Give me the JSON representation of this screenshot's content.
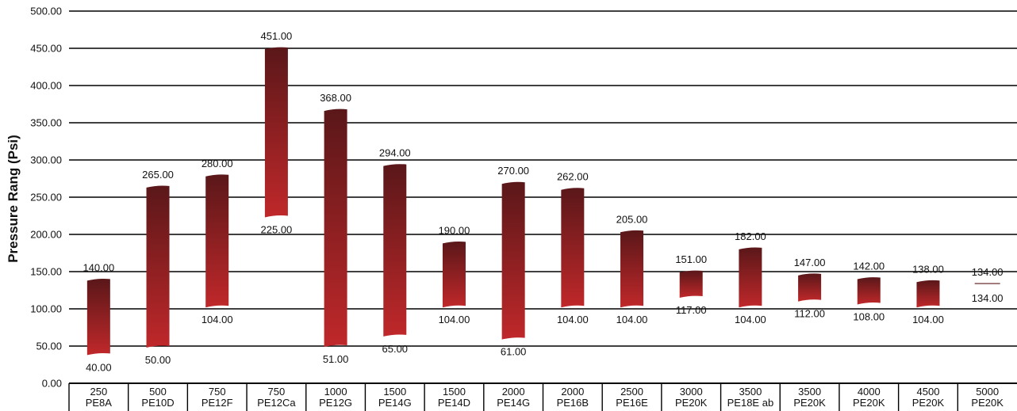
{
  "chart_data": {
    "type": "bar",
    "subtype": "floating-range",
    "ylabel": "Pressure Rang (Psi)",
    "ylim": [
      0,
      500
    ],
    "ytick_step": 50,
    "yticks": [
      "0.00",
      "50.00",
      "100.00",
      "150.00",
      "200.00",
      "250.00",
      "300.00",
      "350.00",
      "400.00",
      "450.00",
      "500.00"
    ],
    "grid": true,
    "legend": "none",
    "colors": {
      "bar_top": "#5a1719",
      "bar_bottom": "#c0282a",
      "grid": "#000000"
    },
    "categories": [
      {
        "line1": "250",
        "line2": "PE8A"
      },
      {
        "line1": "500",
        "line2": "PE10D"
      },
      {
        "line1": "750",
        "line2": "PE12F"
      },
      {
        "line1": "750",
        "line2": "PE12Ca"
      },
      {
        "line1": "1000",
        "line2": "PE12G"
      },
      {
        "line1": "1500",
        "line2": "PE14G"
      },
      {
        "line1": "1500",
        "line2": "PE14D"
      },
      {
        "line1": "2000",
        "line2": "PE14G"
      },
      {
        "line1": "2000",
        "line2": "PE16B"
      },
      {
        "line1": "2500",
        "line2": "PE16E"
      },
      {
        "line1": "3000",
        "line2": "PE20K"
      },
      {
        "line1": "3500",
        "line2": "PE18E ab"
      },
      {
        "line1": "3500",
        "line2": "PE20K"
      },
      {
        "line1": "4000",
        "line2": "PE20K"
      },
      {
        "line1": "4500",
        "line2": "PE20K"
      },
      {
        "line1": "5000",
        "line2": "PE20K"
      }
    ],
    "high": [
      140,
      265,
      280,
      451,
      368,
      294,
      190,
      270,
      262,
      205,
      151,
      182,
      147,
      142,
      138,
      134
    ],
    "low": [
      40,
      50,
      104,
      225,
      51,
      65,
      104,
      61,
      104,
      104,
      117,
      104,
      112,
      108,
      104,
      134
    ],
    "high_labels": [
      "140.00",
      "265.00",
      "280.00",
      "451.00",
      "368.00",
      "294.00",
      "190.00",
      "270.00",
      "262.00",
      "205.00",
      "151.00",
      "182.00",
      "147.00",
      "142.00",
      "138.00",
      "134.00"
    ],
    "low_labels": [
      "40.00",
      "50.00",
      "104.00",
      "225.00",
      "51.00",
      "65.00",
      "104.00",
      "61.00",
      "104.00",
      "104.00",
      "117.00",
      "104.00",
      "112.00",
      "108.00",
      "104.00",
      "134.00"
    ]
  }
}
